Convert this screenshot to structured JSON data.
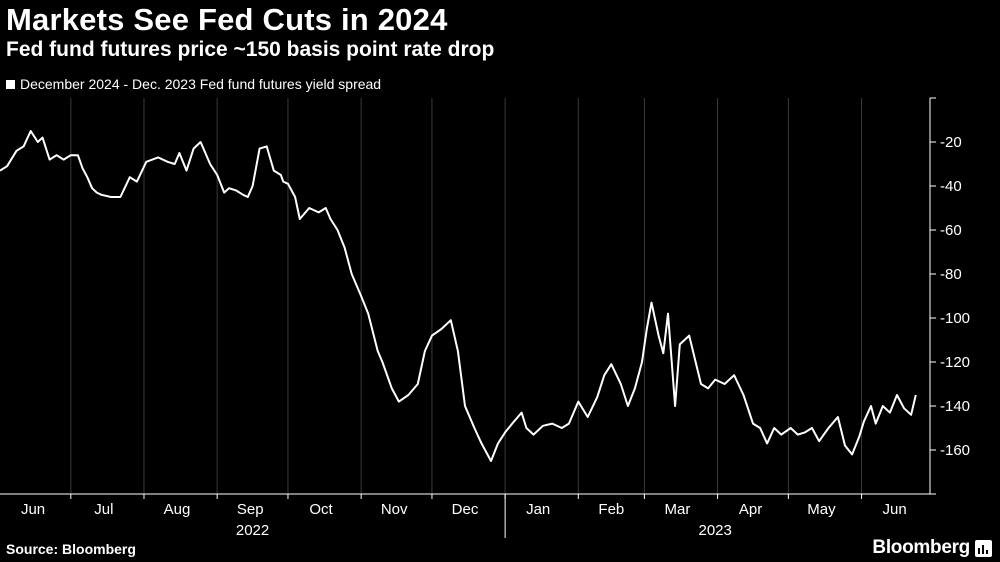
{
  "header": {
    "title": "Markets See Fed Cuts in 2024",
    "subtitle": "Fed fund futures price ~150 basis point rate drop"
  },
  "footer": {
    "source": "Source: Bloomberg",
    "brand": "Bloomberg"
  },
  "colors": {
    "background": "#000000",
    "line": "#ffffff",
    "grid": "#3a3a3a"
  },
  "chart_data": {
    "type": "line",
    "title": "Markets See Fed Cuts in 2024",
    "subtitle": "Fed fund futures price ~150 basis point rate drop",
    "xlabel": "",
    "ylabel": "",
    "ylim": [
      -180,
      0
    ],
    "y_ticks": [
      -20,
      -40,
      -60,
      -80,
      -100,
      -120,
      -140,
      -160
    ],
    "y_tick_labels": [
      "-20",
      "-40",
      "-60",
      "-80",
      "-100",
      "-120",
      "-140",
      "-160"
    ],
    "x_range": [
      "2022-06-01",
      "2023-06-30"
    ],
    "month_ticks": [
      {
        "date": "2022-06-15",
        "label": "Jun"
      },
      {
        "date": "2022-07-15",
        "label": "Jul"
      },
      {
        "date": "2022-08-15",
        "label": "Aug"
      },
      {
        "date": "2022-09-15",
        "label": "Sep"
      },
      {
        "date": "2022-10-15",
        "label": "Oct"
      },
      {
        "date": "2022-11-15",
        "label": "Nov"
      },
      {
        "date": "2022-12-15",
        "label": "Dec"
      },
      {
        "date": "2023-01-15",
        "label": "Jan"
      },
      {
        "date": "2023-02-15",
        "label": "Feb"
      },
      {
        "date": "2023-03-15",
        "label": "Mar"
      },
      {
        "date": "2023-04-15",
        "label": "Apr"
      },
      {
        "date": "2023-05-15",
        "label": "May"
      },
      {
        "date": "2023-06-15",
        "label": "Jun"
      }
    ],
    "month_boundaries": [
      "2022-07-01",
      "2022-08-01",
      "2022-09-01",
      "2022-10-01",
      "2022-11-01",
      "2022-12-01",
      "2023-01-01",
      "2023-02-01",
      "2023-03-01",
      "2023-04-01",
      "2023-05-01",
      "2023-06-01"
    ],
    "year_labels": [
      {
        "date": "2022-09-16",
        "label": "2022"
      },
      {
        "date": "2023-03-31",
        "label": "2023"
      }
    ],
    "year_boundary": "2023-01-01",
    "grid": true,
    "legend": "top-left",
    "series": [
      {
        "name": "December 2024 - Dec. 2023 Fed fund futures yield spread",
        "x": [
          "2022-06-01",
          "2022-06-04",
          "2022-06-08",
          "2022-06-11",
          "2022-06-14",
          "2022-06-17",
          "2022-06-19",
          "2022-06-22",
          "2022-06-25",
          "2022-06-28",
          "2022-07-01",
          "2022-07-04",
          "2022-07-06",
          "2022-07-08",
          "2022-07-10",
          "2022-07-12",
          "2022-07-14",
          "2022-07-18",
          "2022-07-22",
          "2022-07-26",
          "2022-07-29",
          "2022-08-02",
          "2022-08-07",
          "2022-08-11",
          "2022-08-14",
          "2022-08-16",
          "2022-08-19",
          "2022-08-22",
          "2022-08-25",
          "2022-08-29",
          "2022-09-01",
          "2022-09-04",
          "2022-09-06",
          "2022-09-09",
          "2022-09-12",
          "2022-09-14",
          "2022-09-16",
          "2022-09-19",
          "2022-09-22",
          "2022-09-25",
          "2022-09-28",
          "2022-09-29",
          "2022-10-01",
          "2022-10-04",
          "2022-10-06",
          "2022-10-10",
          "2022-10-14",
          "2022-10-17",
          "2022-10-19",
          "2022-10-22",
          "2022-10-25",
          "2022-10-28",
          "2022-11-01",
          "2022-11-04",
          "2022-11-08",
          "2022-11-10",
          "2022-11-14",
          "2022-11-17",
          "2022-11-21",
          "2022-11-25",
          "2022-11-28",
          "2022-12-01",
          "2022-12-05",
          "2022-12-09",
          "2022-12-12",
          "2022-12-15",
          "2022-12-19",
          "2022-12-22",
          "2022-12-26",
          "2022-12-29",
          "2023-01-01",
          "2023-01-04",
          "2023-01-08",
          "2023-01-10",
          "2023-01-13",
          "2023-01-17",
          "2023-01-21",
          "2023-01-25",
          "2023-01-28",
          "2023-02-01",
          "2023-02-05",
          "2023-02-09",
          "2023-02-12",
          "2023-02-15",
          "2023-02-19",
          "2023-02-22",
          "2023-02-25",
          "2023-02-28",
          "2023-03-02",
          "2023-03-04",
          "2023-03-07",
          "2023-03-09",
          "2023-03-11",
          "2023-03-14",
          "2023-03-16",
          "2023-03-18",
          "2023-03-20",
          "2023-03-22",
          "2023-03-25",
          "2023-03-28",
          "2023-03-31",
          "2023-04-04",
          "2023-04-08",
          "2023-04-12",
          "2023-04-16",
          "2023-04-19",
          "2023-04-22",
          "2023-04-25",
          "2023-04-28",
          "2023-05-02",
          "2023-05-05",
          "2023-05-08",
          "2023-05-11",
          "2023-05-14",
          "2023-05-18",
          "2023-05-22",
          "2023-05-25",
          "2023-05-28",
          "2023-05-31",
          "2023-06-02",
          "2023-06-05",
          "2023-06-07",
          "2023-06-10",
          "2023-06-13",
          "2023-06-16",
          "2023-06-19",
          "2023-06-22",
          "2023-06-24"
        ],
        "y": [
          -33,
          -31,
          -24,
          -22,
          -15,
          -20,
          -18,
          -28,
          -26,
          -28,
          -26,
          -26,
          -32,
          -36,
          -41,
          -43,
          -44,
          -45,
          -45,
          -36,
          -38,
          -29,
          -27,
          -29,
          -30,
          -25,
          -33,
          -23,
          -20,
          -30,
          -35,
          -43,
          -41,
          -42,
          -44,
          -45,
          -40,
          -23,
          -22,
          -33,
          -35,
          -38,
          -39,
          -45,
          -55,
          -50,
          -52,
          -50,
          -55,
          -60,
          -68,
          -80,
          -90,
          -98,
          -115,
          -120,
          -132,
          -138,
          -135,
          -130,
          -115,
          -108,
          -105,
          -101,
          -115,
          -140,
          -150,
          -157,
          -165,
          -157,
          -152,
          -148,
          -143,
          -150,
          -153,
          -149,
          -148,
          -150,
          -148,
          -138,
          -145,
          -136,
          -126,
          -121,
          -130,
          -140,
          -132,
          -120,
          -105,
          -93,
          -108,
          -116,
          -98,
          -140,
          -112,
          -110,
          -108,
          -117,
          -130,
          -132,
          -128,
          -130,
          -126,
          -135,
          -148,
          -150,
          -157,
          -150,
          -153,
          -150,
          -153,
          -152,
          -150,
          -156,
          -150,
          -145,
          -158,
          -162,
          -154,
          -147,
          -140,
          -148,
          -140,
          -143,
          -135,
          -141,
          -144,
          -135
        ]
      }
    ]
  }
}
